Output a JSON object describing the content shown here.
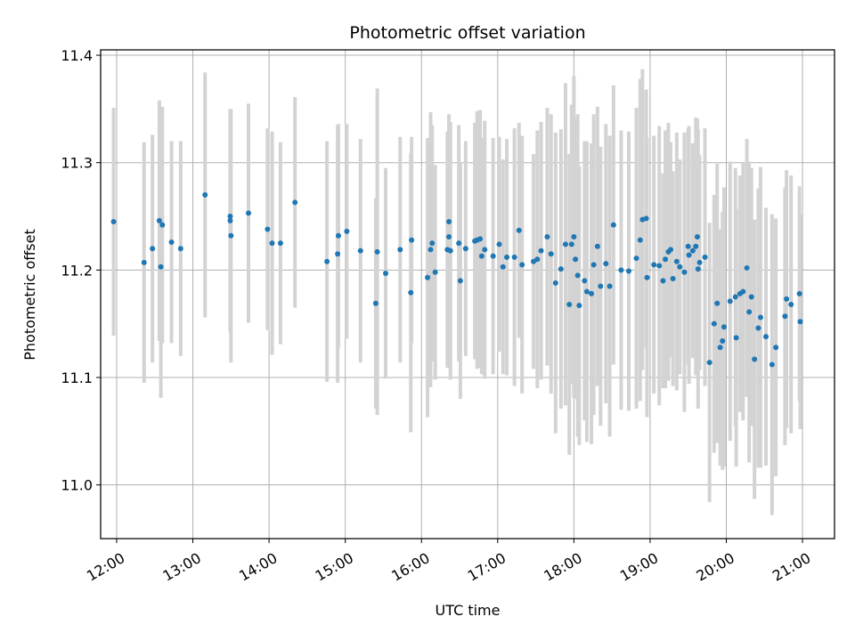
{
  "chart_data": {
    "type": "scatter",
    "title": "Photometric offset variation",
    "xlabel": "UTC time",
    "ylabel": "Photometric offset",
    "x_unit": "UTC time (decimal hours)",
    "xlim": [
      11.79,
      21.42
    ],
    "ylim": [
      10.95,
      11.405
    ],
    "x_ticks": [
      12,
      13,
      14,
      15,
      16,
      17,
      18,
      19,
      20,
      21
    ],
    "x_tick_labels": [
      "12:00",
      "13:00",
      "14:00",
      "15:00",
      "16:00",
      "17:00",
      "18:00",
      "19:00",
      "20:00",
      "21:00"
    ],
    "y_ticks": [
      11.0,
      11.1,
      11.2,
      11.3,
      11.4
    ],
    "y_tick_labels": [
      "11.0",
      "11.1",
      "11.2",
      "11.3",
      "11.4"
    ],
    "grid": true,
    "marker_color": "#1f77b4",
    "errorbar_color": "#d3d3d3",
    "points": [
      [
        11.96,
        11.245,
        0.106
      ],
      [
        12.36,
        11.207,
        0.112
      ],
      [
        12.47,
        11.22,
        0.106
      ],
      [
        12.56,
        11.246,
        0.112
      ],
      [
        12.58,
        11.203,
        0.122
      ],
      [
        12.6,
        11.242,
        0.11
      ],
      [
        12.72,
        11.226,
        0.094
      ],
      [
        12.84,
        11.22,
        0.1
      ],
      [
        13.16,
        11.27,
        0.114
      ],
      [
        13.49,
        11.25,
        0.098
      ],
      [
        13.49,
        11.246,
        0.104
      ],
      [
        13.5,
        11.232,
        0.118
      ],
      [
        13.73,
        11.253,
        0.102
      ],
      [
        13.98,
        11.238,
        0.094
      ],
      [
        14.04,
        11.225,
        0.104
      ],
      [
        14.15,
        11.225,
        0.094
      ],
      [
        14.34,
        11.263,
        0.098
      ],
      [
        14.76,
        11.208,
        0.112
      ],
      [
        14.9,
        11.215,
        0.12
      ],
      [
        14.91,
        11.232,
        0.104
      ],
      [
        15.02,
        11.236,
        0.1
      ],
      [
        15.2,
        11.218,
        0.104
      ],
      [
        15.4,
        11.169,
        0.098
      ],
      [
        15.42,
        11.217,
        0.152
      ],
      [
        15.53,
        11.197,
        0.098
      ],
      [
        15.72,
        11.219,
        0.105
      ],
      [
        15.86,
        11.179,
        0.13
      ],
      [
        15.87,
        11.228,
        0.096
      ],
      [
        16.08,
        11.193,
        0.13
      ],
      [
        16.12,
        11.219,
        0.128
      ],
      [
        16.14,
        11.225,
        0.11
      ],
      [
        16.18,
        11.198,
        0.1
      ],
      [
        16.34,
        11.219,
        0.11
      ],
      [
        16.36,
        11.245,
        0.1
      ],
      [
        16.36,
        11.231,
        0.1
      ],
      [
        16.38,
        11.218,
        0.12
      ],
      [
        16.49,
        11.225,
        0.11
      ],
      [
        16.51,
        11.19,
        0.11
      ],
      [
        16.58,
        11.22,
        0.1
      ],
      [
        16.7,
        11.227,
        0.11
      ],
      [
        16.73,
        11.228,
        0.12
      ],
      [
        16.77,
        11.229,
        0.12
      ],
      [
        16.79,
        11.213,
        0.11
      ],
      [
        16.83,
        11.219,
        0.12
      ],
      [
        16.94,
        11.213,
        0.11
      ],
      [
        17.02,
        11.224,
        0.1
      ],
      [
        17.07,
        11.203,
        0.1
      ],
      [
        17.12,
        11.212,
        0.11
      ],
      [
        17.22,
        11.212,
        0.12
      ],
      [
        17.28,
        11.237,
        0.1
      ],
      [
        17.32,
        11.205,
        0.12
      ],
      [
        17.47,
        11.208,
        0.1
      ],
      [
        17.52,
        11.21,
        0.12
      ],
      [
        17.57,
        11.218,
        0.12
      ],
      [
        17.65,
        11.231,
        0.12
      ],
      [
        17.7,
        11.215,
        0.13
      ],
      [
        17.76,
        11.188,
        0.14
      ],
      [
        17.83,
        11.201,
        0.13
      ],
      [
        17.89,
        11.224,
        0.15
      ],
      [
        17.94,
        11.168,
        0.14
      ],
      [
        17.97,
        11.224,
        0.13
      ],
      [
        18.0,
        11.231,
        0.15
      ],
      [
        18.02,
        11.21,
        0.13
      ],
      [
        18.05,
        11.195,
        0.15
      ],
      [
        18.07,
        11.167,
        0.13
      ],
      [
        18.14,
        11.19,
        0.13
      ],
      [
        18.17,
        11.18,
        0.14
      ],
      [
        18.23,
        11.178,
        0.14
      ],
      [
        18.26,
        11.205,
        0.14
      ],
      [
        18.31,
        11.222,
        0.13
      ],
      [
        18.35,
        11.185,
        0.13
      ],
      [
        18.42,
        11.206,
        0.13
      ],
      [
        18.47,
        11.185,
        0.14
      ],
      [
        18.52,
        11.242,
        0.13
      ],
      [
        18.62,
        11.2,
        0.13
      ],
      [
        18.72,
        11.199,
        0.13
      ],
      [
        18.82,
        11.211,
        0.14
      ],
      [
        18.87,
        11.228,
        0.15
      ],
      [
        18.9,
        11.247,
        0.14
      ],
      [
        18.95,
        11.248,
        0.12
      ],
      [
        18.96,
        11.193,
        0.13
      ],
      [
        19.05,
        11.205,
        0.12
      ],
      [
        19.12,
        11.204,
        0.13
      ],
      [
        19.17,
        11.19,
        0.1
      ],
      [
        19.2,
        11.21,
        0.12
      ],
      [
        19.24,
        11.217,
        0.12
      ],
      [
        19.27,
        11.219,
        0.1
      ],
      [
        19.3,
        11.192,
        0.1
      ],
      [
        19.35,
        11.208,
        0.12
      ],
      [
        19.39,
        11.203,
        0.1
      ],
      [
        19.45,
        11.198,
        0.13
      ],
      [
        19.5,
        11.222,
        0.11
      ],
      [
        19.51,
        11.214,
        0.12
      ],
      [
        19.56,
        11.218,
        0.1
      ],
      [
        19.6,
        11.222,
        0.12
      ],
      [
        19.62,
        11.231,
        0.11
      ],
      [
        19.63,
        11.201,
        0.13
      ],
      [
        19.65,
        11.207,
        0.1
      ],
      [
        19.72,
        11.212,
        0.12
      ],
      [
        19.78,
        11.114,
        0.13
      ],
      [
        19.84,
        11.15,
        0.12
      ],
      [
        19.88,
        11.169,
        0.13
      ],
      [
        19.92,
        11.128,
        0.11
      ],
      [
        19.95,
        11.134,
        0.12
      ],
      [
        19.97,
        11.147,
        0.13
      ],
      [
        20.05,
        11.171,
        0.13
      ],
      [
        20.12,
        11.175,
        0.12
      ],
      [
        20.13,
        11.137,
        0.12
      ],
      [
        20.18,
        11.178,
        0.11
      ],
      [
        20.22,
        11.18,
        0.12
      ],
      [
        20.27,
        11.202,
        0.12
      ],
      [
        20.3,
        11.161,
        0.14
      ],
      [
        20.33,
        11.175,
        0.12
      ],
      [
        20.37,
        11.117,
        0.13
      ],
      [
        20.42,
        11.146,
        0.13
      ],
      [
        20.45,
        11.156,
        0.14
      ],
      [
        20.52,
        11.138,
        0.12
      ],
      [
        20.6,
        11.112,
        0.14
      ],
      [
        20.65,
        11.128,
        0.12
      ],
      [
        20.77,
        11.157,
        0.12
      ],
      [
        20.79,
        11.173,
        0.12
      ],
      [
        20.85,
        11.168,
        0.12
      ],
      [
        20.96,
        11.178,
        0.1
      ],
      [
        20.97,
        11.152,
        0.1
      ]
    ]
  }
}
